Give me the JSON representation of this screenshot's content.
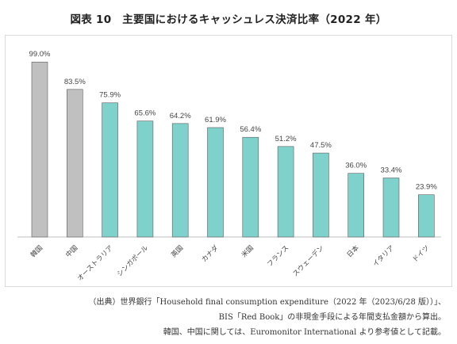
{
  "title": "図表 10　主要国におけるキャッシュレス決済比率（2022 年）",
  "colors": {
    "highlight": "#c0c0c0",
    "bars": "#7fd2cc",
    "bar_stroke": "#5a5a5a",
    "axis": "#bfbfbf"
  },
  "chart_data": {
    "type": "bar",
    "title": "",
    "xlabel": "",
    "ylabel": "",
    "ylim": [
      0,
      100
    ],
    "grid": false,
    "categories": [
      "韓国",
      "中国",
      "オーストラリア",
      "シンガポール",
      "英国",
      "カナダ",
      "米国",
      "フランス",
      "スウェーデン",
      "日本",
      "イタリア",
      "ドイツ"
    ],
    "values": [
      99.0,
      83.5,
      75.9,
      65.6,
      64.2,
      61.9,
      56.4,
      51.2,
      47.5,
      36.0,
      33.4,
      23.9
    ],
    "data_labels": [
      "99.0%",
      "83.5%",
      "75.9%",
      "65.6%",
      "64.2%",
      "61.9%",
      "56.4%",
      "51.2%",
      "47.5%",
      "36.0%",
      "33.4%",
      "23.9%"
    ],
    "highlighted": [
      true,
      true,
      false,
      false,
      false,
      false,
      false,
      false,
      false,
      false,
      false,
      false
    ]
  },
  "source": {
    "line1": "（出典）世界銀行「Household final consumption expenditure（2022 年（2023/6/28 版））」、",
    "line2": "BIS「Red Book」の非現金手段による年間支払金額から算出。",
    "line3": "韓国、中国に関しては、Euromonitor International より参考値として記載。"
  }
}
